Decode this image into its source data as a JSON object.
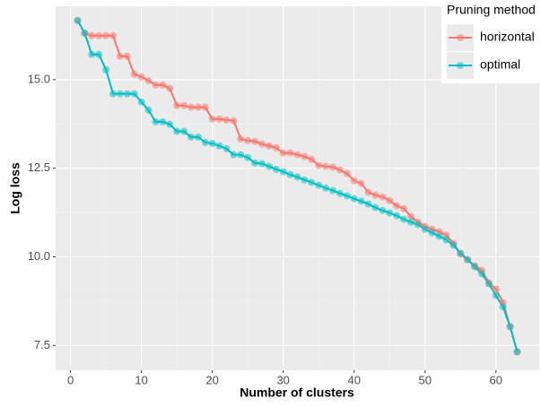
{
  "chart_data": {
    "type": "line",
    "x_label": "Number of clusters",
    "y_label": "Log loss",
    "legend_title": "Pruning method",
    "legend_position": "right",
    "x": [
      1,
      2,
      3,
      4,
      5,
      6,
      7,
      8,
      9,
      10,
      11,
      12,
      13,
      14,
      15,
      16,
      17,
      18,
      19,
      20,
      21,
      22,
      23,
      24,
      25,
      26,
      27,
      28,
      29,
      30,
      31,
      32,
      33,
      34,
      35,
      36,
      37,
      38,
      39,
      40,
      41,
      42,
      43,
      44,
      45,
      46,
      47,
      48,
      49,
      50,
      51,
      52,
      53,
      54,
      55,
      56,
      57,
      58,
      59,
      60,
      61,
      62,
      63
    ],
    "series": [
      {
        "name": "horizontal",
        "color": "#F8766D",
        "values": [
          16.67,
          16.31,
          16.24,
          16.24,
          16.24,
          16.24,
          15.66,
          15.66,
          15.15,
          15.08,
          14.97,
          14.85,
          14.85,
          14.75,
          14.27,
          14.27,
          14.22,
          14.22,
          14.22,
          13.89,
          13.89,
          13.86,
          13.84,
          13.33,
          13.28,
          13.26,
          13.18,
          13.13,
          13.08,
          12.93,
          12.93,
          12.88,
          12.83,
          12.75,
          12.58,
          12.55,
          12.53,
          12.45,
          12.35,
          12.15,
          12.07,
          11.82,
          11.74,
          11.69,
          11.59,
          11.44,
          11.36,
          11.14,
          10.98,
          10.86,
          10.78,
          10.71,
          10.61,
          10.38,
          10.08,
          9.92,
          9.75,
          9.62,
          9.27,
          9.09,
          8.71,
          8.03,
          7.32
        ]
      },
      {
        "name": "optimal",
        "color": "#00BFC4",
        "values": [
          16.67,
          16.31,
          15.71,
          15.71,
          15.28,
          14.6,
          14.6,
          14.6,
          14.6,
          14.37,
          14.14,
          13.81,
          13.81,
          13.74,
          13.54,
          13.54,
          13.38,
          13.38,
          13.23,
          13.2,
          13.13,
          13.05,
          12.88,
          12.88,
          12.8,
          12.65,
          12.63,
          12.55,
          12.47,
          12.4,
          12.32,
          12.25,
          12.17,
          12.1,
          12.02,
          11.94,
          11.87,
          11.79,
          11.72,
          11.64,
          11.57,
          11.49,
          11.39,
          11.31,
          11.24,
          11.16,
          11.06,
          10.98,
          10.91,
          10.78,
          10.68,
          10.58,
          10.48,
          10.33,
          10.1,
          9.92,
          9.72,
          9.52,
          9.24,
          8.91,
          8.59,
          8.03,
          7.32
        ]
      }
    ],
    "xlim": [
      -2.1,
      66.1
    ],
    "xticks": [
      0,
      10,
      20,
      30,
      40,
      50,
      60
    ],
    "ylim": [
      6.8,
      17.07
    ],
    "yticks": [
      7.5,
      {
        "value": 10,
        "label": "10.0"
      },
      12.5,
      {
        "value": 15,
        "label": "15.0"
      }
    ],
    "grid": true
  }
}
